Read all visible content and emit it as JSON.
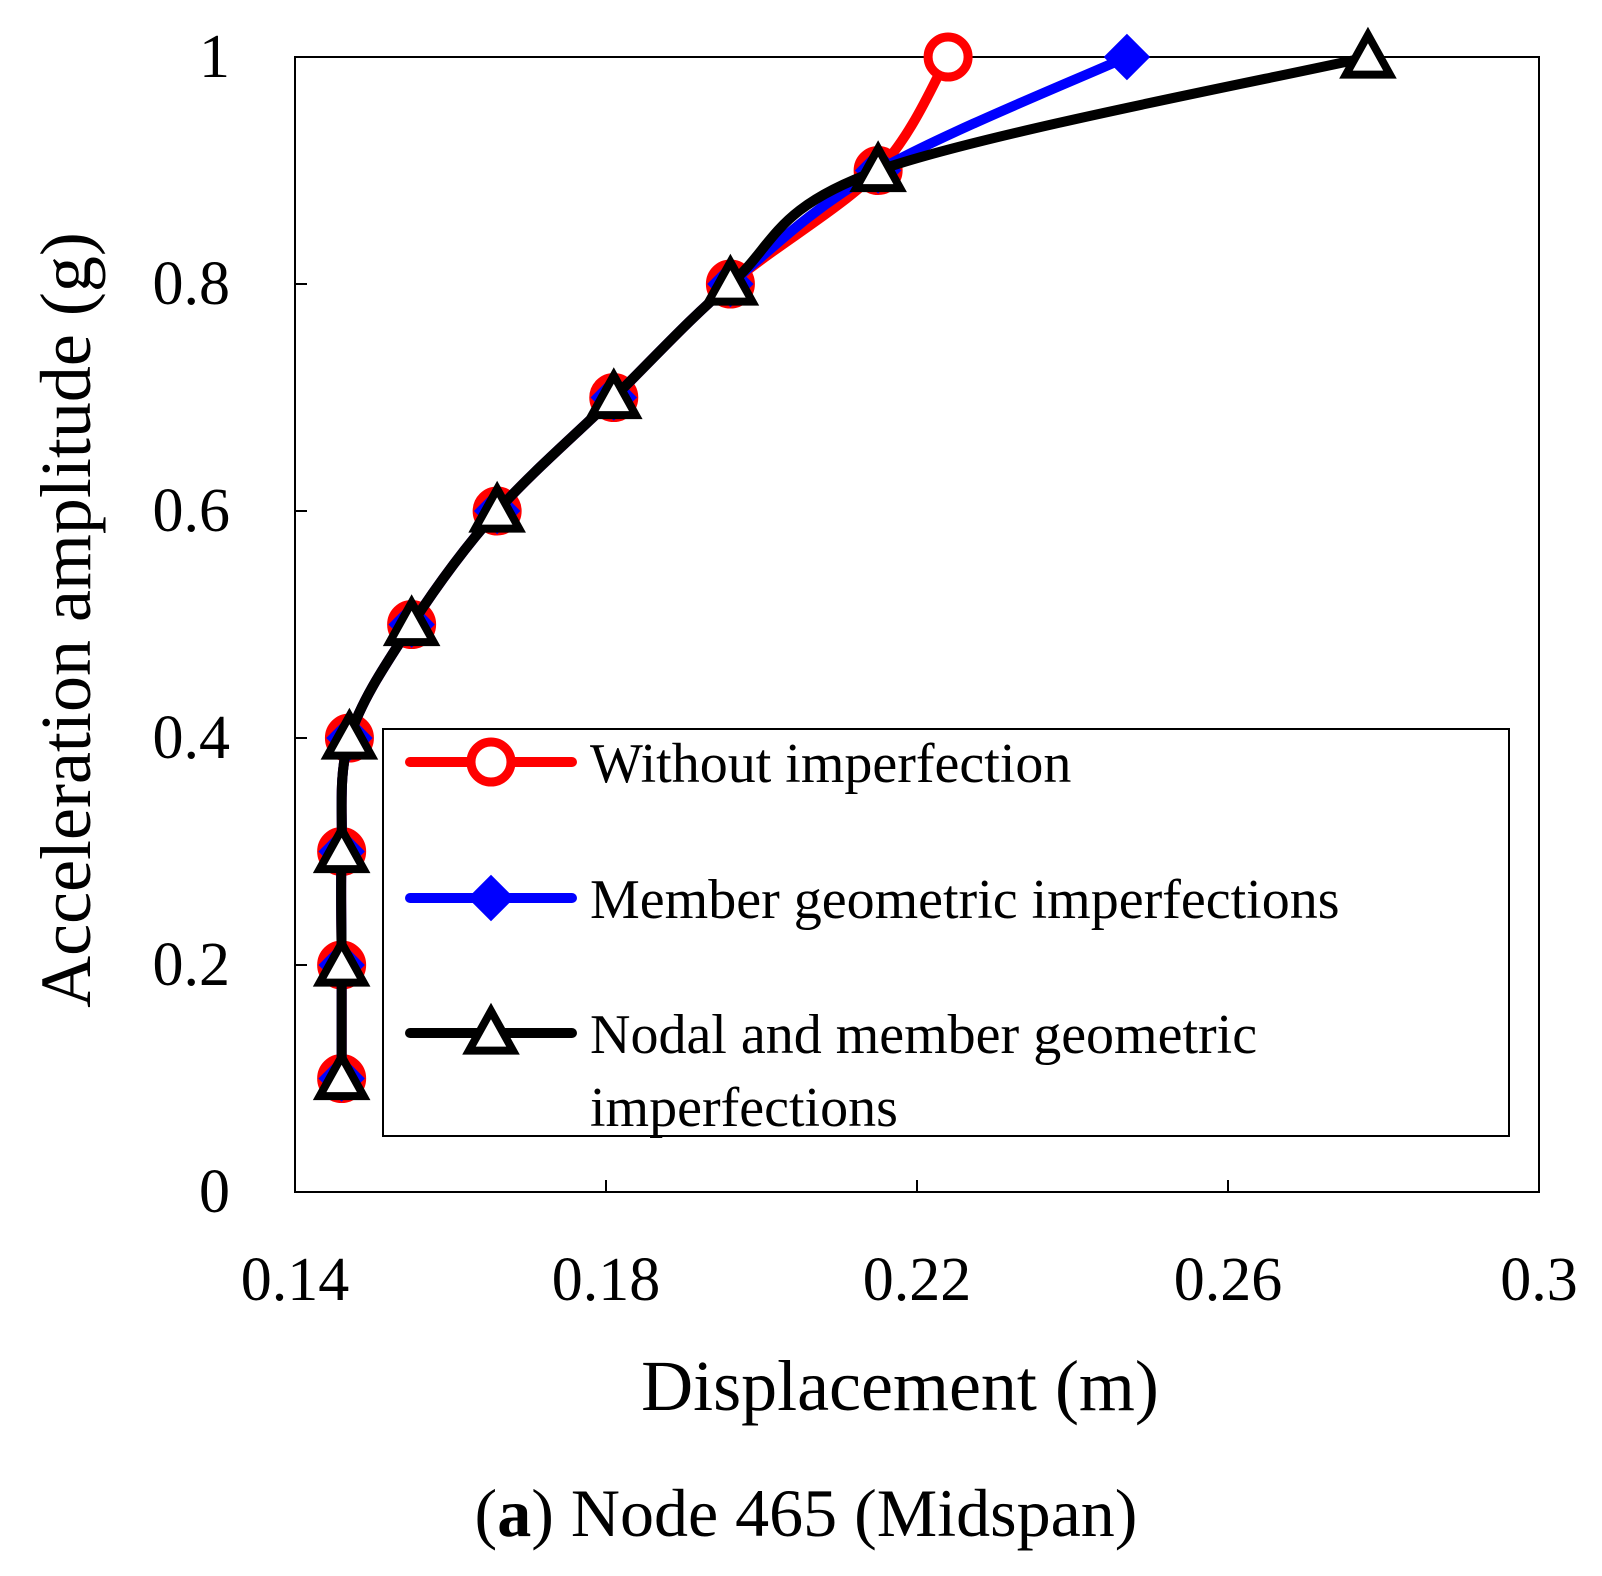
{
  "chart_data": {
    "type": "line",
    "title": "",
    "xlabel": "Displacement (m)",
    "ylabel": "Acceleration amplitude (g)",
    "xlim": [
      0.14,
      0.3
    ],
    "ylim": [
      0,
      1
    ],
    "x_ticks": [
      "0.14",
      "0.18",
      "0.22",
      "0.26",
      "0.3"
    ],
    "y_ticks": [
      "0",
      "0.2",
      "0.4",
      "0.6",
      "0.8",
      "1"
    ],
    "grid": false,
    "legend_position": "bottom-right",
    "series": [
      {
        "name": "Without  imperfection",
        "color": "#ff0000",
        "marker": "circle",
        "points": [
          [
            0.146,
            0.1
          ],
          [
            0.146,
            0.2
          ],
          [
            0.146,
            0.3
          ],
          [
            0.147,
            0.4
          ],
          [
            0.155,
            0.5
          ],
          [
            0.166,
            0.6
          ],
          [
            0.181,
            0.7
          ],
          [
            0.196,
            0.8
          ],
          [
            0.215,
            0.9
          ],
          [
            0.224,
            1.0
          ]
        ]
      },
      {
        "name": "Member geometric imperfections",
        "color": "#0000ff",
        "marker": "diamond",
        "points": [
          [
            0.146,
            0.1
          ],
          [
            0.146,
            0.2
          ],
          [
            0.146,
            0.3
          ],
          [
            0.147,
            0.4
          ],
          [
            0.155,
            0.5
          ],
          [
            0.166,
            0.6
          ],
          [
            0.181,
            0.7
          ],
          [
            0.196,
            0.8
          ],
          [
            0.215,
            0.9
          ],
          [
            0.247,
            1.0
          ]
        ]
      },
      {
        "name": "Nodal and member geometric imperfections",
        "legend_lines": [
          "Nodal and member geometric",
          "imperfections"
        ],
        "color": "#000000",
        "marker": "triangle",
        "points": [
          [
            0.146,
            0.1
          ],
          [
            0.146,
            0.2
          ],
          [
            0.146,
            0.3
          ],
          [
            0.147,
            0.4
          ],
          [
            0.155,
            0.5
          ],
          [
            0.166,
            0.6
          ],
          [
            0.181,
            0.7
          ],
          [
            0.196,
            0.8
          ],
          [
            0.215,
            0.9
          ],
          [
            0.278,
            1.0
          ]
        ]
      }
    ]
  },
  "caption": {
    "label": "a",
    "text": "Node 465 (Midspan)"
  }
}
